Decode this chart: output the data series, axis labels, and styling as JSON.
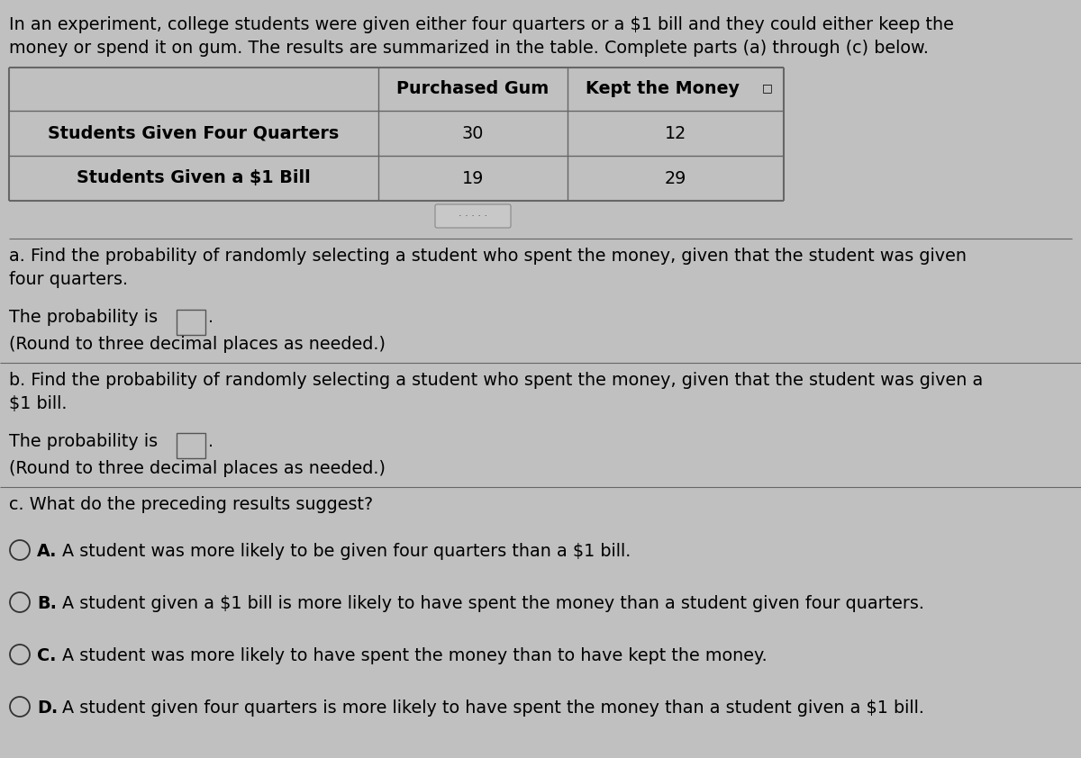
{
  "background_color": "#c0c0c0",
  "intro_text_line1": "In an experiment, college students were given either four quarters or a $1 bill and they could either keep the",
  "intro_text_line2": "money or spend it on gum. The results are summarized in the table. Complete parts (a) through (c) below.",
  "col_header1": "Purchased Gum",
  "col_header2": "Kept the Money",
  "row1_label": "Students Given Four Quarters",
  "row2_label": "Students Given a $1 Bill",
  "row1_val1": "30",
  "row1_val2": "12",
  "row2_val1": "19",
  "row2_val2": "29",
  "part_a_line1": "a. Find the probability of randomly selecting a student who spent the money, given that the student was given",
  "part_a_line2": "four quarters.",
  "prob_text": "The probability is",
  "round_text": "(Round to three decimal places as needed.)",
  "part_b_line1": "b. Find the probability of randomly selecting a student who spent the money, given that the student was given a",
  "part_b_line2": "$1 bill.",
  "part_c_text": "c. What do the preceding results suggest?",
  "opt_a_label": "A.",
  "opt_a_text": "A student was more likely to be given four quarters than a $1 bill.",
  "opt_b_label": "B.",
  "opt_b_text": "A student given a $1 bill is more likely to have spent the money than a student given four quarters.",
  "opt_c_label": "C.",
  "opt_c_text": "A student was more likely to have spent the money than to have kept the money.",
  "opt_d_label": "D.",
  "opt_d_text": "A student given four quarters is more likely to have spent the money than a student given a $1 bill.",
  "text_color": "#000000",
  "line_color": "#666666",
  "font_size": 13.8,
  "table_font_size": 13.8
}
